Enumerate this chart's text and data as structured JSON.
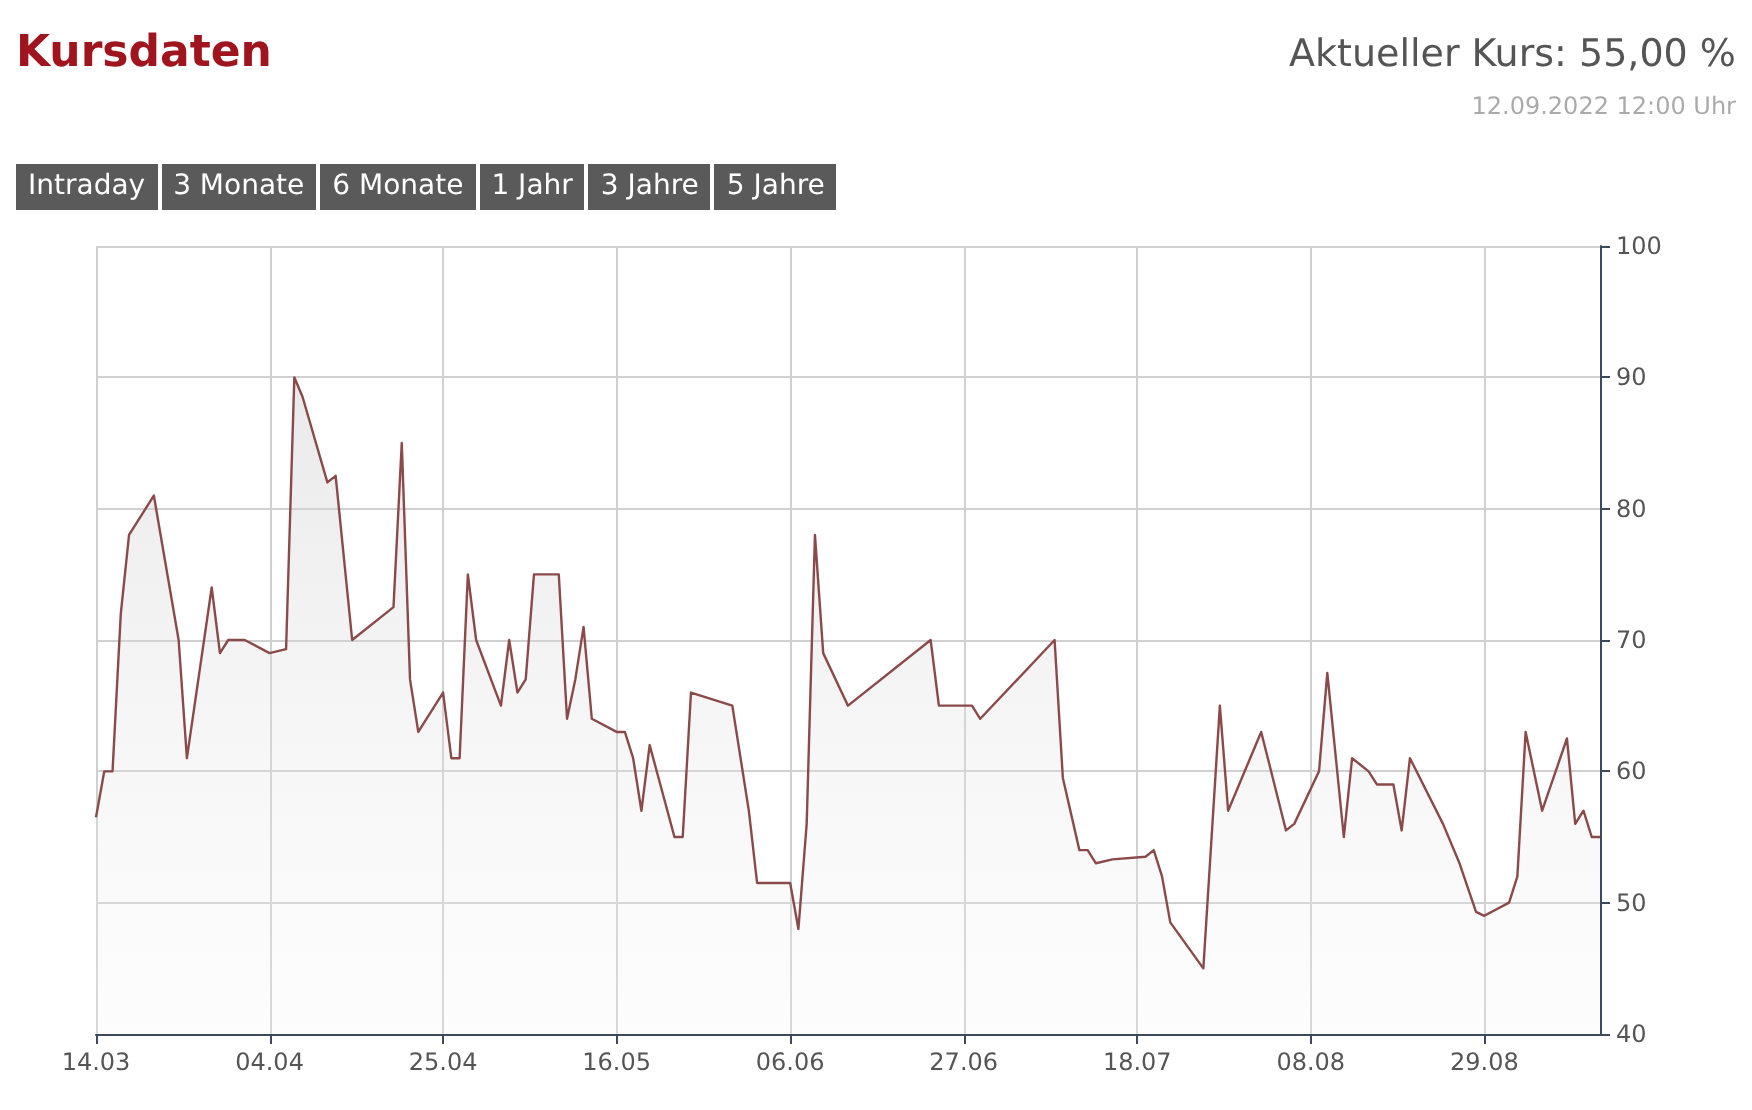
{
  "chart_data": {
    "type": "area",
    "title": "Kursdaten",
    "annotations": [
      "Aktueller Kurs: 55,00 %",
      "12.09.2022 12:00 Uhr",
      "Intraday",
      "3 Monate",
      "6 Monate",
      "1 Jahr",
      "3 Jahre",
      "5 Jahre"
    ],
    "x": [
      "2022-03-14",
      "2022-03-15",
      "2022-03-16",
      "2022-03-17",
      "2022-03-18",
      "2022-03-21",
      "2022-03-24",
      "2022-03-25",
      "2022-03-28",
      "2022-03-29",
      "2022-03-30",
      "2022-04-01",
      "2022-04-04",
      "2022-04-06",
      "2022-04-07",
      "2022-04-08",
      "2022-04-11",
      "2022-04-12",
      "2022-04-14",
      "2022-04-19",
      "2022-04-20",
      "2022-04-21",
      "2022-04-22",
      "2022-04-25",
      "2022-04-26",
      "2022-04-27",
      "2022-04-28",
      "2022-04-29",
      "2022-05-02",
      "2022-05-03",
      "2022-05-04",
      "2022-05-05",
      "2022-05-06",
      "2022-05-09",
      "2022-05-10",
      "2022-05-11",
      "2022-05-12",
      "2022-05-13",
      "2022-05-16",
      "2022-05-17",
      "2022-05-18",
      "2022-05-19",
      "2022-05-20",
      "2022-05-23",
      "2022-05-24",
      "2022-05-25",
      "2022-05-30",
      "2022-06-01",
      "2022-06-02",
      "2022-06-06",
      "2022-06-07",
      "2022-06-08",
      "2022-06-09",
      "2022-06-10",
      "2022-06-13",
      "2022-06-23",
      "2022-06-24",
      "2022-06-28",
      "2022-06-29",
      "2022-07-08",
      "2022-07-09",
      "2022-07-11",
      "2022-07-12",
      "2022-07-13",
      "2022-07-15",
      "2022-07-19",
      "2022-07-20",
      "2022-07-21",
      "2022-07-22",
      "2022-07-26",
      "2022-07-28",
      "2022-07-29",
      "2022-08-02",
      "2022-08-05",
      "2022-08-06",
      "2022-08-09",
      "2022-08-10",
      "2022-08-12",
      "2022-08-13",
      "2022-08-15",
      "2022-08-16",
      "2022-08-18",
      "2022-08-19",
      "2022-08-20",
      "2022-08-24",
      "2022-08-26",
      "2022-08-28",
      "2022-08-29",
      "2022-09-01",
      "2022-09-02",
      "2022-09-03",
      "2022-09-05",
      "2022-09-08",
      "2022-09-09",
      "2022-09-10",
      "2022-09-11",
      "2022-09-12"
    ],
    "series": [
      {
        "color": "#8b4a4a",
        "values": [
          56.5,
          60,
          60,
          72,
          78,
          81,
          70,
          61,
          74,
          69,
          70,
          70,
          69,
          69.3,
          90,
          88.5,
          82,
          82.5,
          70,
          72.5,
          85,
          67,
          63,
          66,
          61,
          61,
          75,
          70,
          65,
          70,
          66,
          67,
          75,
          75,
          64,
          67,
          71,
          64,
          63,
          63,
          61,
          57,
          62,
          55,
          55,
          66,
          65,
          57,
          51.5,
          51.5,
          48,
          56,
          78,
          69,
          65,
          70,
          65,
          65,
          64,
          70,
          59.5,
          54,
          54,
          53,
          53.3,
          53.5,
          54,
          52,
          48.5,
          45,
          65,
          57,
          63,
          55.5,
          56,
          60,
          67.5,
          55,
          61,
          60,
          59,
          59,
          55.5,
          61,
          56,
          53,
          49.3,
          49,
          50,
          52,
          63,
          57,
          62.5,
          56,
          57,
          55,
          55
        ]
      }
    ],
    "xlim": [
      "2022-03-14",
      "2022-09-12"
    ],
    "xticks": [
      {
        "value": "2022-03-14",
        "label": "14.03"
      },
      {
        "value": "2022-04-04",
        "label": "04.04"
      },
      {
        "value": "2022-04-25",
        "label": "25.04"
      },
      {
        "value": "2022-05-16",
        "label": "16.05"
      },
      {
        "value": "2022-06-06",
        "label": "06.06"
      },
      {
        "value": "2022-06-27",
        "label": "27.06"
      },
      {
        "value": "2022-07-18",
        "label": "18.07"
      },
      {
        "value": "2022-08-08",
        "label": "08.08"
      },
      {
        "value": "2022-08-29",
        "label": "29.08"
      }
    ],
    "ylim": [
      40,
      100
    ],
    "yticks": [
      40,
      50,
      60,
      70,
      80,
      90,
      100
    ],
    "grid": true
  }
}
